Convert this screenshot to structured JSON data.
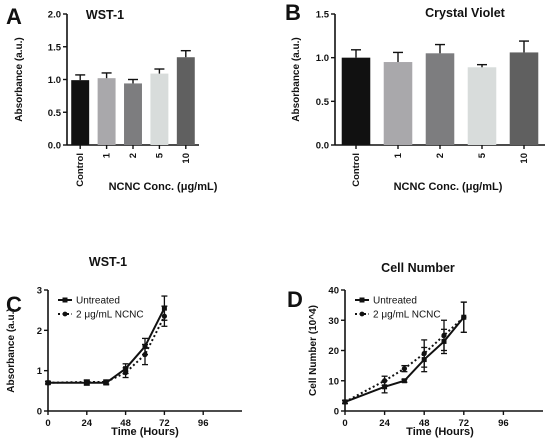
{
  "chart_data": [
    {
      "panel_letter": "A",
      "type": "bar",
      "title": "WST-1",
      "xlabel": "NCNC Conc. (μg/mL)",
      "ylabel": "Absorbance (a.u.)",
      "categories": [
        "Control",
        "1",
        "2",
        "5",
        "10"
      ],
      "values": [
        0.99,
        1.02,
        0.94,
        1.09,
        1.34
      ],
      "errors": [
        0.08,
        0.08,
        0.06,
        0.07,
        0.1
      ],
      "colors": [
        "#111111",
        "#a9a8ab",
        "#7d7d7f",
        "#d8dcdb",
        "#606060"
      ],
      "ylim": [
        0,
        2.0
      ],
      "yticks": [
        "0.0",
        "0.5",
        "1.0",
        "1.5",
        "2.0"
      ],
      "grid": false
    },
    {
      "panel_letter": "B",
      "type": "bar",
      "title": "Crystal Violet",
      "xlabel": "NCNC Conc. (μg/mL)",
      "ylabel": "Absorbance (a.u.)",
      "categories": [
        "Control",
        "1",
        "2",
        "5",
        "10"
      ],
      "values": [
        1.0,
        0.95,
        1.05,
        0.89,
        1.06
      ],
      "errors": [
        0.09,
        0.11,
        0.1,
        0.03,
        0.13
      ],
      "colors": [
        "#111111",
        "#a9a8ab",
        "#7d7d7f",
        "#d8dcdb",
        "#606060"
      ],
      "ylim": [
        0,
        1.5
      ],
      "yticks": [
        "0.0",
        "0.5",
        "1.0",
        "1.5"
      ],
      "grid": false
    },
    {
      "panel_letter": "C",
      "type": "line",
      "title": "WST-1",
      "xlabel": "Time (Hours)",
      "ylabel": "Absorbance (a.u.)",
      "xlim": [
        0,
        120
      ],
      "ylim": [
        0,
        3
      ],
      "xticks": [
        "0",
        "24",
        "48",
        "72",
        "96"
      ],
      "yticks": [
        "0",
        "1",
        "2",
        "3"
      ],
      "legend_position": "top-left",
      "series": [
        {
          "name": "Untreated",
          "style": "solid",
          "x": [
            0,
            24,
            36,
            48,
            60,
            72
          ],
          "y": [
            0.7,
            0.7,
            0.7,
            1.05,
            1.6,
            2.55
          ],
          "err": [
            0.03,
            0.06,
            0.05,
            0.12,
            0.2,
            0.3
          ]
        },
        {
          "name": "2 μg/mL NCNC",
          "style": "dotted",
          "x": [
            0,
            24,
            36,
            48,
            60,
            72
          ],
          "y": [
            0.7,
            0.72,
            0.72,
            0.95,
            1.4,
            2.35
          ],
          "err": [
            0.03,
            0.05,
            0.05,
            0.12,
            0.25,
            0.25
          ]
        }
      ],
      "grid": false
    },
    {
      "panel_letter": "D",
      "type": "line",
      "title": "Cell Number",
      "xlabel": "Time (Hours)",
      "ylabel": "Cell Number (10^4)",
      "xlim": [
        0,
        120
      ],
      "ylim": [
        0,
        40
      ],
      "xticks": [
        "0",
        "24",
        "48",
        "72",
        "96"
      ],
      "yticks": [
        "0",
        "10",
        "20",
        "30",
        "40"
      ],
      "legend_position": "top-left",
      "series": [
        {
          "name": "Untreated",
          "style": "solid",
          "x": [
            0,
            24,
            36,
            48,
            60,
            72
          ],
          "y": [
            3,
            8,
            10,
            17,
            23,
            31
          ],
          "err": [
            0.5,
            2.0,
            0.5,
            4.0,
            4.0,
            5.0
          ]
        },
        {
          "name": "2 μg/mL NCNC",
          "style": "dotted",
          "x": [
            0,
            24,
            36,
            48,
            60,
            72
          ],
          "y": [
            3,
            10,
            14,
            19,
            25,
            31
          ],
          "err": [
            0.5,
            1.5,
            1.0,
            4.5,
            5.0,
            5.0
          ]
        }
      ],
      "grid": false
    }
  ]
}
